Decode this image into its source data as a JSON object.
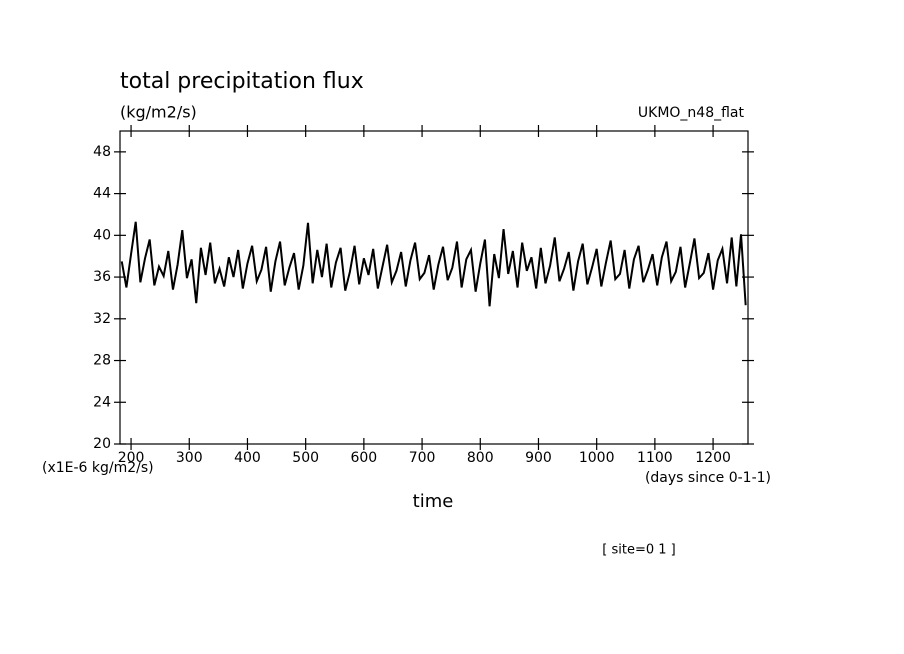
{
  "chart_data": {
    "type": "line",
    "title": "total precipitation flux",
    "subtitle": "(kg/m2/s)",
    "dataset": "UKMO_n48_flat",
    "ylabel": "(x1E-6 kg/m2/s)",
    "xunits": "(days since 0-1-1)",
    "xlabel": "time",
    "annotation": "[ site=0 1 ]",
    "xlim": [
      181,
      1260
    ],
    "ylim": [
      20,
      50
    ],
    "xticks": [
      200,
      300,
      400,
      500,
      600,
      700,
      800,
      900,
      1000,
      1100,
      1200
    ],
    "yticks": [
      20,
      24,
      28,
      32,
      36,
      40,
      44,
      48
    ],
    "x": [
      184,
      192,
      200,
      208,
      216,
      224,
      232,
      240,
      248,
      256,
      264,
      272,
      280,
      288,
      296,
      304,
      312,
      320,
      328,
      336,
      344,
      352,
      360,
      368,
      376,
      384,
      392,
      400,
      408,
      416,
      424,
      432,
      440,
      448,
      456,
      464,
      472,
      480,
      488,
      496,
      504,
      512,
      520,
      528,
      536,
      544,
      552,
      560,
      568,
      576,
      584,
      592,
      600,
      608,
      616,
      624,
      632,
      640,
      648,
      656,
      664,
      672,
      680,
      688,
      696,
      704,
      712,
      720,
      728,
      736,
      744,
      752,
      760,
      768,
      776,
      784,
      792,
      800,
      808,
      816,
      824,
      832,
      840,
      848,
      856,
      864,
      872,
      880,
      888,
      896,
      904,
      912,
      920,
      928,
      936,
      944,
      952,
      960,
      968,
      976,
      984,
      992,
      1000,
      1008,
      1016,
      1024,
      1032,
      1040,
      1048,
      1056,
      1064,
      1072,
      1080,
      1088,
      1096,
      1104,
      1112,
      1120,
      1128,
      1136,
      1144,
      1152,
      1160,
      1168,
      1176,
      1184,
      1192,
      1200,
      1208,
      1216,
      1224,
      1232,
      1240,
      1248,
      1256
    ],
    "series": [
      {
        "color": "#000000",
        "values": [
          37.5,
          35.0,
          38.2,
          41.3,
          35.5,
          37.8,
          39.6,
          35.2,
          37.0,
          36.1,
          38.5,
          34.8,
          37.2,
          40.5,
          35.9,
          37.7,
          33.5,
          38.8,
          36.2,
          39.3,
          35.4,
          36.8,
          35.1,
          37.9,
          36.0,
          38.6,
          34.9,
          37.3,
          39.0,
          35.6,
          36.7,
          38.9,
          34.6,
          37.5,
          39.4,
          35.2,
          36.9,
          38.3,
          34.8,
          37.1,
          41.2,
          35.4,
          38.6,
          36.0,
          39.2,
          35.0,
          37.4,
          38.8,
          34.7,
          36.5,
          39.0,
          35.3,
          37.8,
          36.2,
          38.7,
          34.9,
          37.0,
          39.1,
          35.5,
          36.6,
          38.4,
          35.1,
          37.6,
          39.3,
          35.8,
          36.4,
          38.1,
          34.8,
          37.2,
          38.9,
          35.7,
          36.9,
          39.4,
          35.0,
          37.7,
          38.6,
          34.6,
          37.3,
          39.6,
          33.2,
          38.2,
          35.9,
          40.6,
          36.3,
          38.5,
          35.0,
          39.3,
          36.6,
          37.9,
          34.9,
          38.8,
          35.4,
          37.1,
          39.8,
          35.6,
          36.8,
          38.4,
          34.7,
          37.5,
          39.2,
          35.3,
          36.9,
          38.7,
          35.1,
          37.4,
          39.5,
          35.8,
          36.3,
          38.6,
          34.9,
          37.7,
          39.0,
          35.5,
          36.7,
          38.2,
          35.2,
          37.9,
          39.4,
          35.6,
          36.5,
          38.9,
          35.0,
          37.3,
          39.7,
          35.9,
          36.4,
          38.3,
          34.8,
          37.6,
          38.7,
          35.4,
          39.8,
          35.1,
          40.1,
          33.3
        ]
      }
    ]
  }
}
